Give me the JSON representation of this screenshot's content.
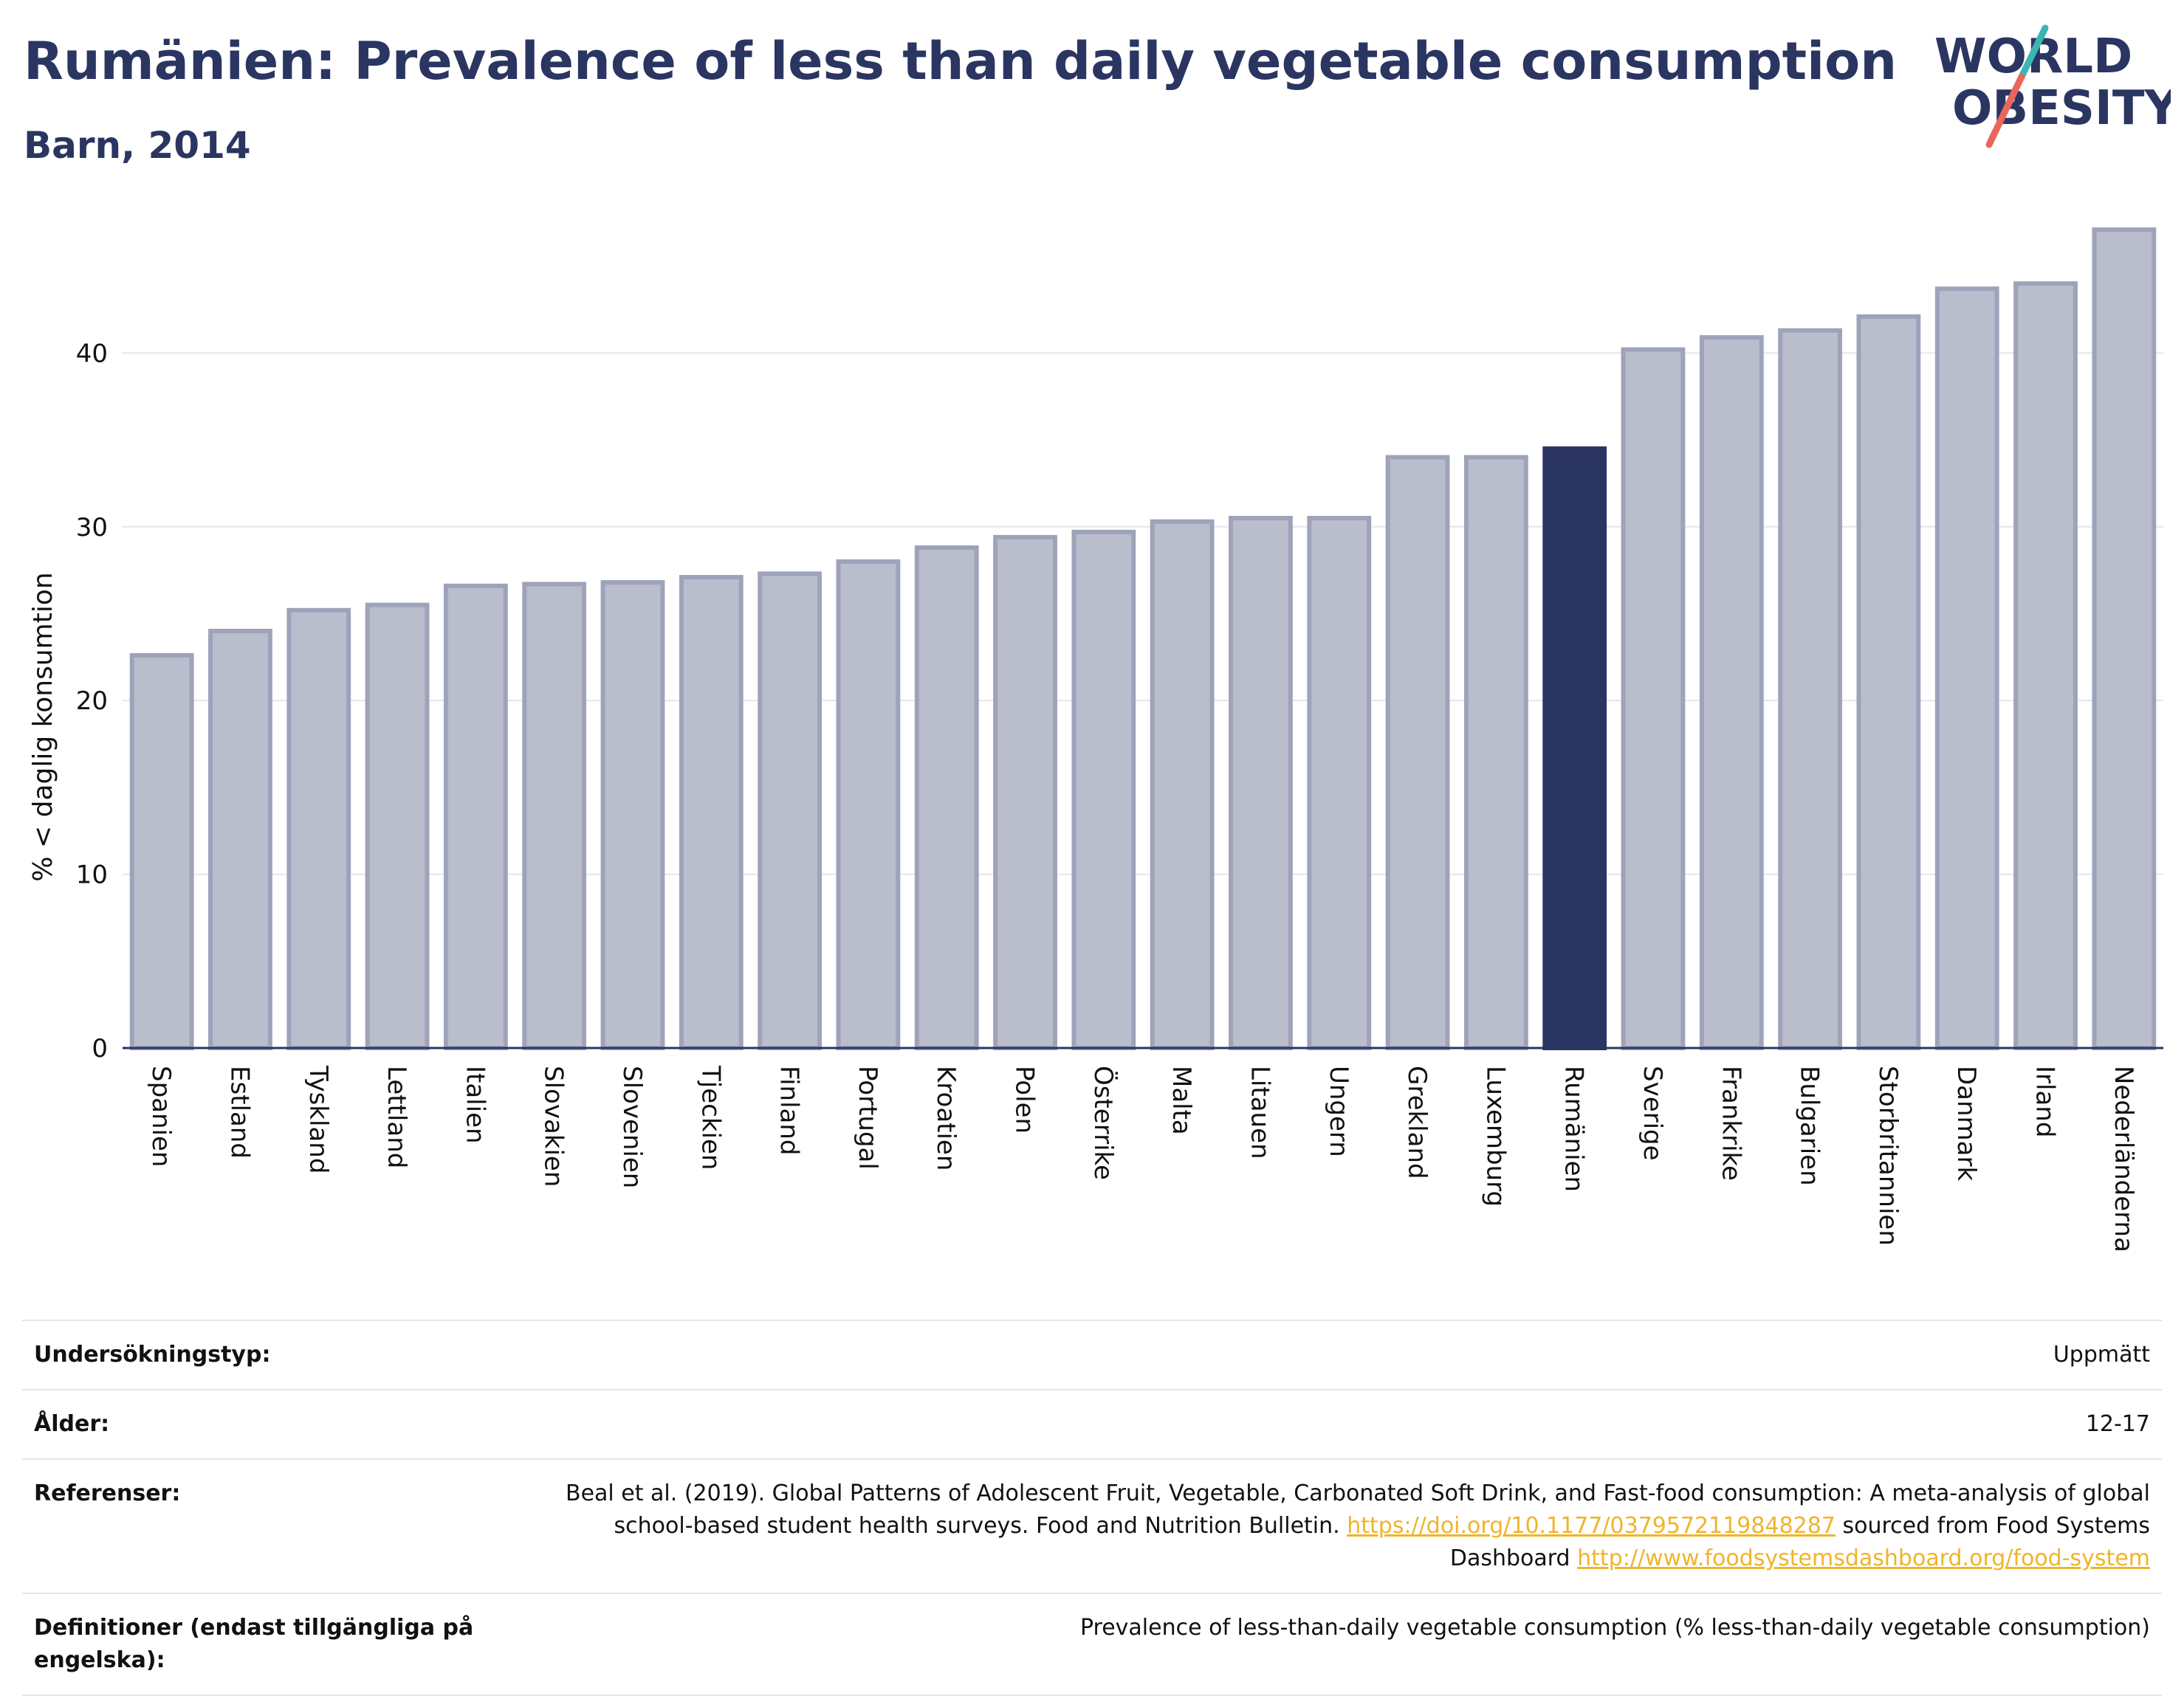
{
  "header": {
    "title": "Rumänien: Prevalence of less than daily vegetable consumption",
    "subtitle": "Barn, 2014"
  },
  "logo": {
    "line1": "WORLD",
    "line2": "OBESITY"
  },
  "colors": {
    "text": "#2b3561",
    "bar": "#b9bdcc",
    "bar_border": "#9ea3ba",
    "highlight": "#2b3561",
    "grid": "#e4e6ec",
    "link": "#f0b429",
    "logo_teal": "#3cb6b4",
    "logo_coral": "#e8675a"
  },
  "chart_data": {
    "type": "bar",
    "ylabel": "% < daglig konsumtion",
    "xlabel": "",
    "ylim": [
      0,
      48
    ],
    "yticks": [
      0,
      10,
      20,
      30,
      40
    ],
    "grid": true,
    "highlight": "Rumänien",
    "categories": [
      "Spanien",
      "Estland",
      "Tyskland",
      "Lettland",
      "Italien",
      "Slovakien",
      "Slovenien",
      "Tjeckien",
      "Finland",
      "Portugal",
      "Kroatien",
      "Polen",
      "Österrike",
      "Malta",
      "Litauen",
      "Ungern",
      "Grekland",
      "Luxemburg",
      "Rumänien",
      "Sverige",
      "Frankrike",
      "Bulgarien",
      "Storbritannien",
      "Danmark",
      "Irland",
      "Nederländerna"
    ],
    "values": [
      22.6,
      24.0,
      25.2,
      25.5,
      26.6,
      26.7,
      26.8,
      27.1,
      27.3,
      28.0,
      28.8,
      29.4,
      29.7,
      30.3,
      30.5,
      30.5,
      34.0,
      34.0,
      34.5,
      40.2,
      40.9,
      41.3,
      42.1,
      43.7,
      44.0,
      47.1
    ]
  },
  "info": {
    "rows": [
      {
        "key": "Undersökningstyp:",
        "value": "Uppmätt"
      },
      {
        "key": "Ålder:",
        "value": "12-17"
      },
      {
        "key": "Referenser:",
        "text1": "Beal et al. (2019). Global Patterns of Adolescent Fruit, Vegetable, Carbonated Soft Drink, and Fast-food consumption: A meta-analysis of global school-based student health surveys. Food and Nutrition Bulletin.",
        "link1": "https://doi.org/10.1177/0379572119848287",
        "text2": "sourced from Food Systems Dashboard",
        "link2": "http://www.foodsystemsdashboard.org/food-system"
      },
      {
        "key": "Definitioner (endast tillgängliga på engelska):",
        "value": "Prevalence of less-than-daily vegetable consumption (% less-than-daily vegetable consumption)"
      }
    ]
  }
}
